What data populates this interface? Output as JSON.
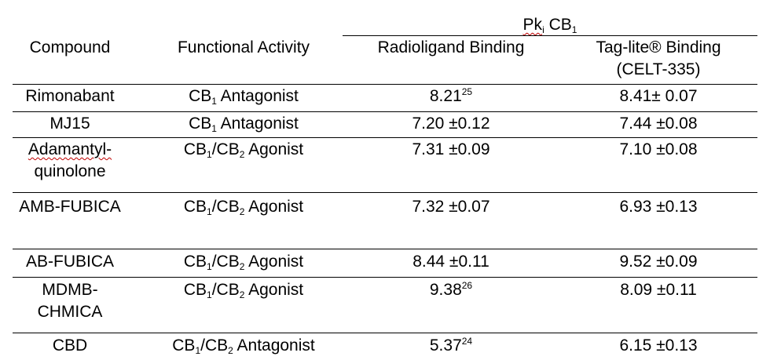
{
  "table": {
    "group_header": {
      "pk": "Pk",
      "i": "i",
      "cb": " CB",
      "one": "1"
    },
    "headers": {
      "compound": "Compound",
      "functional_activity": "Functional Activity",
      "radioligand": "Radioligand Binding",
      "taglite_1": "Tag-lite® Binding",
      "taglite_2": "(CELT-335)"
    },
    "rows": [
      {
        "compound": "Rimonabant",
        "activity": [
          "CB",
          "1",
          " Antagonist"
        ],
        "radio": [
          "8.21",
          "25"
        ],
        "tag": "8.41± 0.07"
      },
      {
        "compound": "MJ15",
        "activity": [
          "CB",
          "1",
          " Antagonist"
        ],
        "radio": [
          "7.20 ±0.12",
          ""
        ],
        "tag": "7.44 ±0.08"
      },
      {
        "compound": [
          "Adamantyl-",
          "quinolone"
        ],
        "activity": [
          "CB",
          "1",
          "/CB",
          "2",
          " Agonist"
        ],
        "radio": [
          "7.31 ±0.09",
          ""
        ],
        "tag": "7.10 ±0.08"
      },
      {
        "compound": "AMB-FUBICA",
        "activity": [
          "CB",
          "1",
          "/CB",
          "2",
          " Agonist"
        ],
        "radio": [
          "7.32 ±0.07",
          ""
        ],
        "tag": "6.93 ±0.13"
      },
      {
        "compound": "AB-FUBICA",
        "activity": [
          "CB",
          "1",
          "/CB",
          "2",
          " Agonist"
        ],
        "radio": [
          "8.44 ±0.11",
          ""
        ],
        "tag": "9.52 ±0.09"
      },
      {
        "compound": [
          "MDMB-",
          "CHMICA"
        ],
        "activity": [
          "CB",
          "1",
          "/CB",
          "2",
          " Agonist"
        ],
        "radio": [
          "9.38",
          "26"
        ],
        "tag": "8.09 ±0.11"
      },
      {
        "compound": "CBD",
        "activity": [
          "CB",
          "1",
          "/CB",
          "2",
          " Antagonist"
        ],
        "radio": [
          "5.37",
          "24"
        ],
        "tag": "6.15 ±0.13"
      }
    ]
  }
}
